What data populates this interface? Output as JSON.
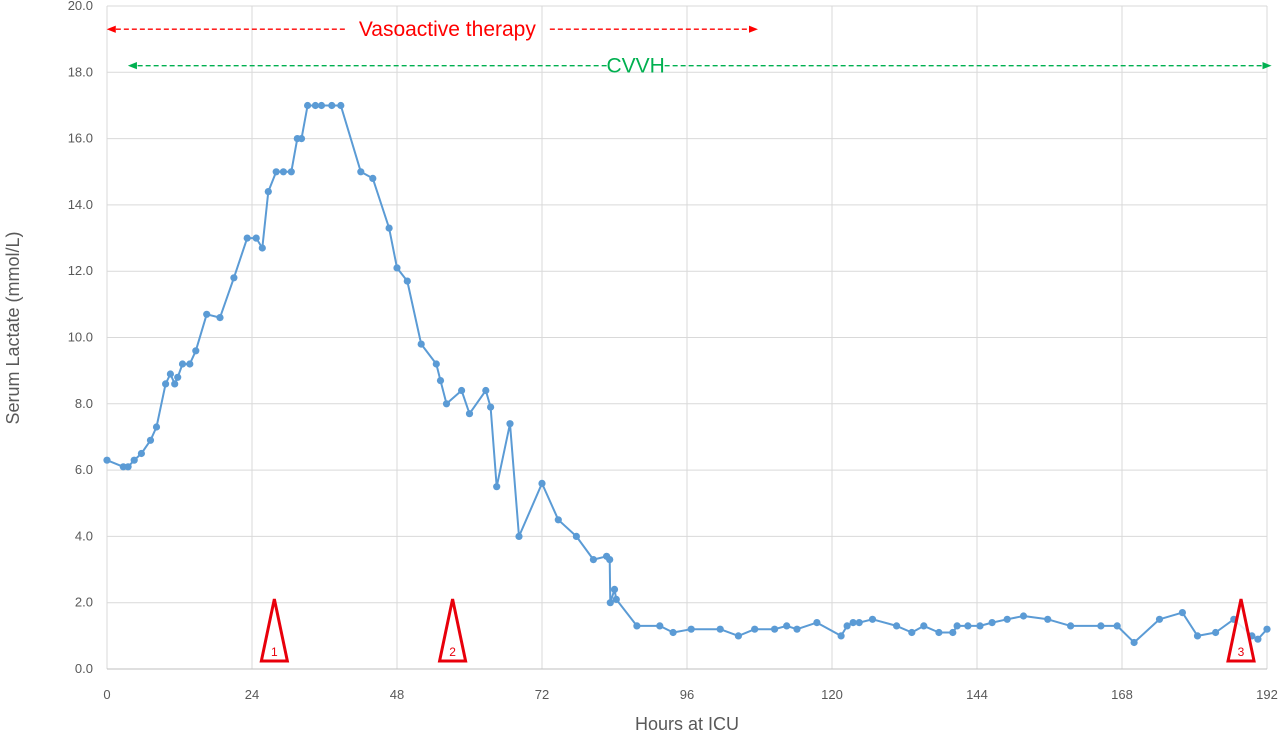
{
  "chart_data": {
    "type": "line",
    "xlabel": "Hours at ICU",
    "ylabel": "Serum Lactate (mmol/L)",
    "xlim": [
      0,
      192
    ],
    "ylim": [
      0,
      20
    ],
    "x_ticks": [
      "0",
      "24",
      "48",
      "72",
      "96",
      "120",
      "144",
      "168",
      "192"
    ],
    "y_ticks": [
      "0.0",
      "2.0",
      "4.0",
      "6.0",
      "8.0",
      "10.0",
      "12.0",
      "14.0",
      "16.0",
      "18.0",
      "20.0"
    ],
    "grid": true,
    "series": [
      {
        "color": "#5b9bd5",
        "points": [
          [
            0,
            6.3
          ],
          [
            2.7,
            6.1
          ],
          [
            3.5,
            6.1
          ],
          [
            4.5,
            6.3
          ],
          [
            5.7,
            6.5
          ],
          [
            7.2,
            6.9
          ],
          [
            8.2,
            7.3
          ],
          [
            9.7,
            8.6
          ],
          [
            10.5,
            8.9
          ],
          [
            11.2,
            8.6
          ],
          [
            11.7,
            8.8
          ],
          [
            12.5,
            9.2
          ],
          [
            13.7,
            9.2
          ],
          [
            14.7,
            9.6
          ],
          [
            16.5,
            10.7
          ],
          [
            18.7,
            10.6
          ],
          [
            21,
            11.8
          ],
          [
            23.2,
            13
          ],
          [
            24.7,
            13
          ],
          [
            25.7,
            12.7
          ],
          [
            26.7,
            14.4
          ],
          [
            28,
            15
          ],
          [
            29.2,
            15
          ],
          [
            30.5,
            15
          ],
          [
            31.5,
            16
          ],
          [
            32.2,
            16
          ],
          [
            33.2,
            17
          ],
          [
            34.5,
            17
          ],
          [
            35.5,
            17
          ],
          [
            37.2,
            17
          ],
          [
            38.7,
            17
          ],
          [
            42,
            15
          ],
          [
            44,
            14.8
          ],
          [
            46.7,
            13.3
          ],
          [
            48,
            12.1
          ],
          [
            49.7,
            11.7
          ],
          [
            52,
            9.8
          ],
          [
            54.5,
            9.2
          ],
          [
            55.2,
            8.7
          ],
          [
            56.2,
            8
          ],
          [
            58.7,
            8.4
          ],
          [
            60,
            7.7
          ],
          [
            62.7,
            8.4
          ],
          [
            63.5,
            7.9
          ],
          [
            64.5,
            5.5
          ],
          [
            66.7,
            7.4
          ],
          [
            68.2,
            4
          ],
          [
            72,
            5.6
          ],
          [
            74.7,
            4.5
          ],
          [
            77.7,
            4
          ],
          [
            80.5,
            3.3
          ],
          [
            82.7,
            3.4
          ],
          [
            83.2,
            3.3
          ],
          [
            83.3,
            2
          ],
          [
            84,
            2.4
          ],
          [
            84.3,
            2.1
          ],
          [
            87.7,
            1.3
          ],
          [
            91.5,
            1.3
          ],
          [
            93.7,
            1.1
          ],
          [
            96.7,
            1.2
          ],
          [
            101.5,
            1.2
          ],
          [
            104.5,
            1
          ],
          [
            107.2,
            1.2
          ],
          [
            110.5,
            1.2
          ],
          [
            112.5,
            1.3
          ],
          [
            114.2,
            1.2
          ],
          [
            117.5,
            1.4
          ],
          [
            121.5,
            1
          ],
          [
            122.5,
            1.3
          ],
          [
            123.5,
            1.4
          ],
          [
            124.5,
            1.4
          ],
          [
            126.7,
            1.5
          ],
          [
            130.7,
            1.3
          ],
          [
            133.2,
            1.1
          ],
          [
            135.2,
            1.3
          ],
          [
            137.7,
            1.1
          ],
          [
            140,
            1.1
          ],
          [
            140.7,
            1.3
          ],
          [
            142.5,
            1.3
          ],
          [
            144.5,
            1.3
          ],
          [
            146.5,
            1.4
          ],
          [
            149,
            1.5
          ],
          [
            151.7,
            1.6
          ],
          [
            155.7,
            1.5
          ],
          [
            159.5,
            1.3
          ],
          [
            164.5,
            1.3
          ],
          [
            167.2,
            1.3
          ],
          [
            170,
            0.8
          ],
          [
            174.2,
            1.5
          ],
          [
            178,
            1.7
          ],
          [
            180.5,
            1
          ],
          [
            183.5,
            1.1
          ],
          [
            186.5,
            1.5
          ],
          [
            189.5,
            1
          ],
          [
            190.5,
            0.9
          ],
          [
            192,
            1.2
          ]
        ]
      }
    ],
    "annotations": [
      {
        "label": "Vasoactive therapy",
        "color": "#ff0000",
        "y": 19.3,
        "x_start": 0.7,
        "x_end": 107
      },
      {
        "label": "CVVH",
        "color": "#00b050",
        "y": 18.2,
        "x_start": 4.2,
        "x_end": 192
      }
    ],
    "markers": [
      {
        "label": "1",
        "x": 27.7
      },
      {
        "label": "2",
        "x": 57.2
      },
      {
        "label": "3",
        "x": 187.7
      }
    ],
    "marker_color": "#e8000b"
  }
}
